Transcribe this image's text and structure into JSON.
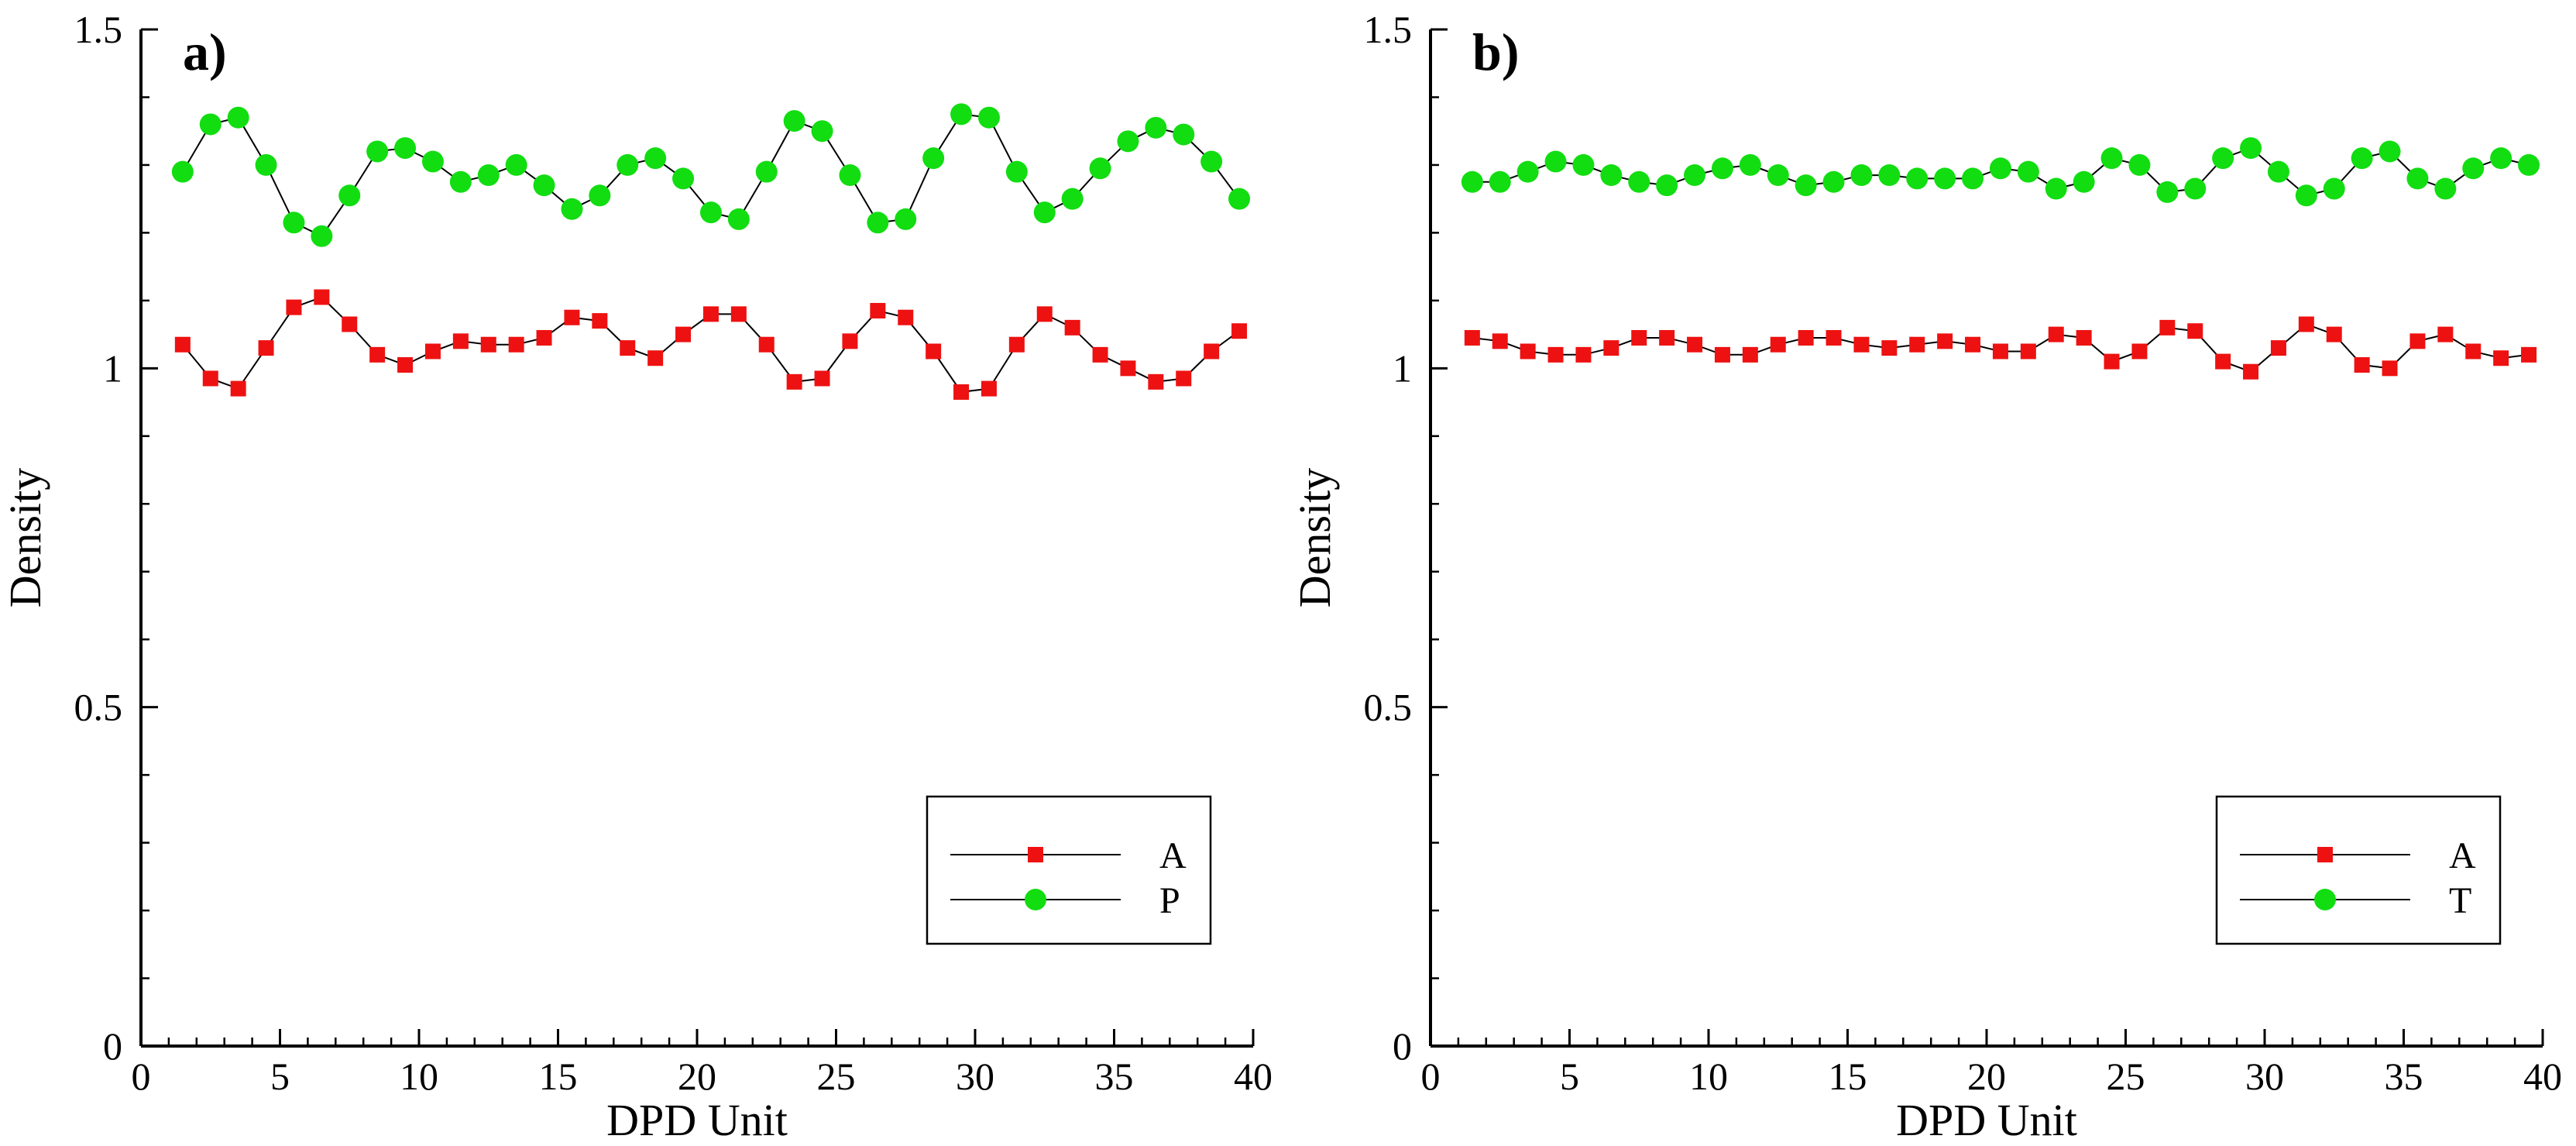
{
  "colors": {
    "series_a": "#ee1111",
    "series_b": "#11dd11",
    "line": "#000000",
    "background": "#ffffff"
  },
  "chart_data": [
    {
      "type": "line",
      "panel_label": "a)",
      "xlabel": "DPD Unit",
      "ylabel": "Density",
      "xlim": [
        0,
        40
      ],
      "ylim": [
        0,
        1.5
      ],
      "xticks": [
        0,
        5,
        10,
        15,
        20,
        25,
        30,
        35,
        40
      ],
      "xtick_labels": [
        "0",
        "5",
        "10",
        "15",
        "20",
        "25",
        "30",
        "35",
        "40"
      ],
      "yticks": [
        0,
        0.5,
        1,
        1.5
      ],
      "ytick_labels": [
        "0",
        "0.5",
        "1",
        "1.5"
      ],
      "grid": false,
      "legend_position": "bottom-right",
      "x": [
        1.5,
        2.5,
        3.5,
        4.5,
        5.5,
        6.5,
        7.5,
        8.5,
        9.5,
        10.5,
        11.5,
        12.5,
        13.5,
        14.5,
        15.5,
        16.5,
        17.5,
        18.5,
        19.5,
        20.5,
        21.5,
        22.5,
        23.5,
        24.5,
        25.5,
        26.5,
        27.5,
        28.5,
        29.5,
        30.5,
        31.5,
        32.5,
        33.5,
        34.5,
        35.5,
        36.5,
        37.5,
        38.5,
        39.5
      ],
      "series": [
        {
          "name": "A",
          "marker": "square",
          "color": "#ee1111",
          "values": [
            1.035,
            0.985,
            0.97,
            1.03,
            1.09,
            1.105,
            1.065,
            1.02,
            1.005,
            1.025,
            1.04,
            1.035,
            1.035,
            1.045,
            1.075,
            1.07,
            1.03,
            1.015,
            1.05,
            1.08,
            1.08,
            1.035,
            0.98,
            0.985,
            1.04,
            1.085,
            1.075,
            1.025,
            0.965,
            0.97,
            1.035,
            1.08,
            1.06,
            1.02,
            1.0,
            0.98,
            0.985,
            1.025,
            1.055
          ]
        },
        {
          "name": "P",
          "marker": "circle",
          "color": "#11dd11",
          "values": [
            1.29,
            1.36,
            1.37,
            1.3,
            1.215,
            1.195,
            1.255,
            1.32,
            1.325,
            1.305,
            1.275,
            1.285,
            1.3,
            1.27,
            1.235,
            1.255,
            1.3,
            1.31,
            1.28,
            1.23,
            1.22,
            1.29,
            1.365,
            1.35,
            1.285,
            1.215,
            1.22,
            1.31,
            1.375,
            1.37,
            1.29,
            1.23,
            1.25,
            1.295,
            1.335,
            1.355,
            1.345,
            1.305,
            1.25
          ]
        }
      ]
    },
    {
      "type": "line",
      "panel_label": "b)",
      "xlabel": "DPD Unit",
      "ylabel": "Density",
      "xlim": [
        0,
        40
      ],
      "ylim": [
        0,
        1.5
      ],
      "xticks": [
        0,
        5,
        10,
        15,
        20,
        25,
        30,
        35,
        40
      ],
      "xtick_labels": [
        "0",
        "5",
        "10",
        "15",
        "20",
        "25",
        "30",
        "35",
        "40"
      ],
      "yticks": [
        0,
        0.5,
        1,
        1.5
      ],
      "ytick_labels": [
        "0",
        "0.5",
        "1",
        "1.5"
      ],
      "grid": false,
      "legend_position": "bottom-right",
      "x": [
        1.5,
        2.5,
        3.5,
        4.5,
        5.5,
        6.5,
        7.5,
        8.5,
        9.5,
        10.5,
        11.5,
        12.5,
        13.5,
        14.5,
        15.5,
        16.5,
        17.5,
        18.5,
        19.5,
        20.5,
        21.5,
        22.5,
        23.5,
        24.5,
        25.5,
        26.5,
        27.5,
        28.5,
        29.5,
        30.5,
        31.5,
        32.5,
        33.5,
        34.5,
        35.5,
        36.5,
        37.5,
        38.5,
        39.5
      ],
      "series": [
        {
          "name": "A",
          "marker": "square",
          "color": "#ee1111",
          "values": [
            1.045,
            1.04,
            1.025,
            1.02,
            1.02,
            1.03,
            1.045,
            1.045,
            1.035,
            1.02,
            1.02,
            1.035,
            1.045,
            1.045,
            1.035,
            1.03,
            1.035,
            1.04,
            1.035,
            1.025,
            1.025,
            1.05,
            1.045,
            1.01,
            1.025,
            1.06,
            1.055,
            1.01,
            0.995,
            1.03,
            1.065,
            1.05,
            1.005,
            1.0,
            1.04,
            1.05,
            1.025,
            1.015,
            1.02
          ]
        },
        {
          "name": "T",
          "marker": "circle",
          "color": "#11dd11",
          "values": [
            1.275,
            1.275,
            1.29,
            1.305,
            1.3,
            1.285,
            1.275,
            1.27,
            1.285,
            1.295,
            1.3,
            1.285,
            1.27,
            1.275,
            1.285,
            1.285,
            1.28,
            1.28,
            1.28,
            1.295,
            1.29,
            1.265,
            1.275,
            1.31,
            1.3,
            1.26,
            1.265,
            1.31,
            1.325,
            1.29,
            1.255,
            1.265,
            1.31,
            1.32,
            1.28,
            1.265,
            1.295,
            1.31,
            1.3
          ]
        }
      ]
    }
  ]
}
